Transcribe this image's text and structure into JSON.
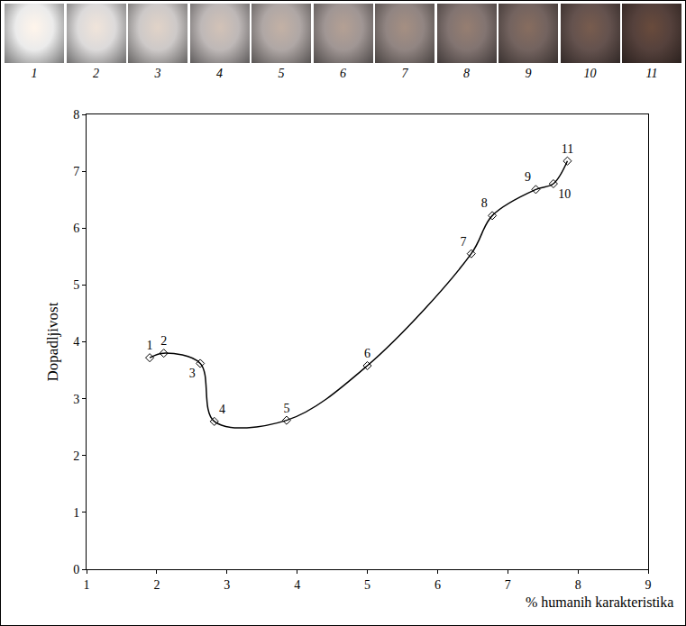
{
  "chart_data": {
    "type": "line",
    "x": [
      1.9,
      2.1,
      2.62,
      2.82,
      3.85,
      5.0,
      6.48,
      6.78,
      7.4,
      7.65,
      7.85
    ],
    "values": [
      3.72,
      3.8,
      3.62,
      2.6,
      2.62,
      3.58,
      5.55,
      6.22,
      6.68,
      6.78,
      7.18
    ],
    "point_labels": [
      "1",
      "2",
      "3",
      "4",
      "5",
      "6",
      "7",
      "8",
      "9",
      "10",
      "11"
    ],
    "xlabel": "% humanih karakteristika",
    "ylabel": "Dopadljivost",
    "xlim": [
      1,
      9
    ],
    "xticks": [
      1,
      2,
      3,
      4,
      5,
      6,
      7,
      8,
      9
    ],
    "ylim": [
      0,
      8
    ],
    "yticks": [
      0,
      1,
      2,
      3,
      4,
      5,
      6,
      7,
      8
    ],
    "grid": false,
    "color": "#000000",
    "marker": "diamond-open",
    "line_style": "spline"
  }
}
